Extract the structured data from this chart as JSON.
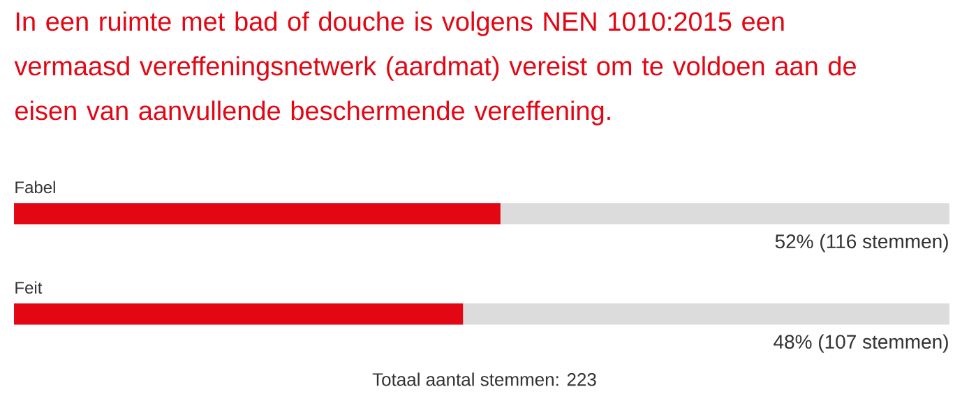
{
  "chart_data": {
    "type": "bar",
    "orientation": "horizontal",
    "title": "In een ruimte met bad of douche is volgens NEN 1010:2015 een vermaasd vereffeningsnetwerk (aardmat) vereist om te voldoen aan de eisen van aanvullende beschermende vereffening.",
    "categories": [
      "Fabel",
      "Feit"
    ],
    "values": [
      52,
      48
    ],
    "value_labels": [
      "52% (116 stemmen)",
      "48% (107 stemmen)"
    ],
    "color": "#e30613",
    "xlim": [
      0,
      100
    ],
    "annotations": [
      "Totaal aantal stemmen: 223"
    ]
  }
}
